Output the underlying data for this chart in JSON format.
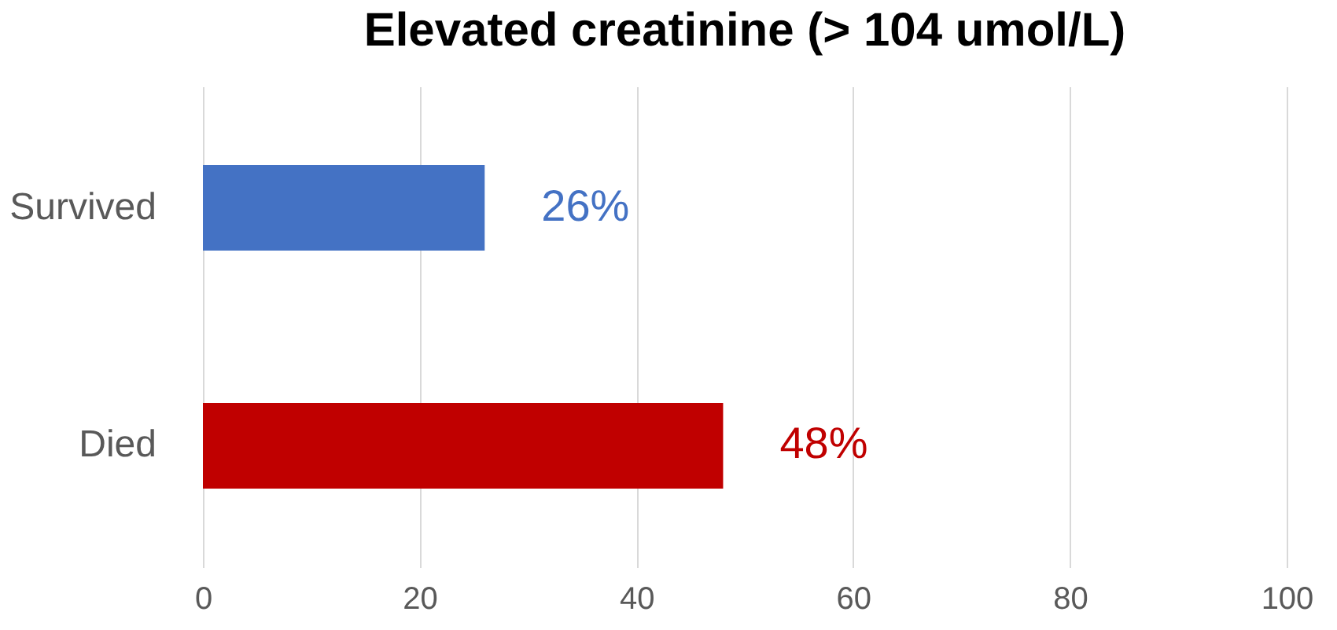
{
  "chart_data": {
    "type": "bar",
    "orientation": "horizontal",
    "title": "Elevated creatinine (> 104 umol/L)",
    "categories": [
      "Survived",
      "Died"
    ],
    "values": [
      26,
      48
    ],
    "colors": [
      "#4472c4",
      "#c00000"
    ],
    "value_labels": [
      "26%",
      "48%"
    ],
    "xlim": [
      0,
      100
    ],
    "xticks": [
      0,
      20,
      40,
      60,
      80,
      100
    ],
    "grid": "x"
  }
}
